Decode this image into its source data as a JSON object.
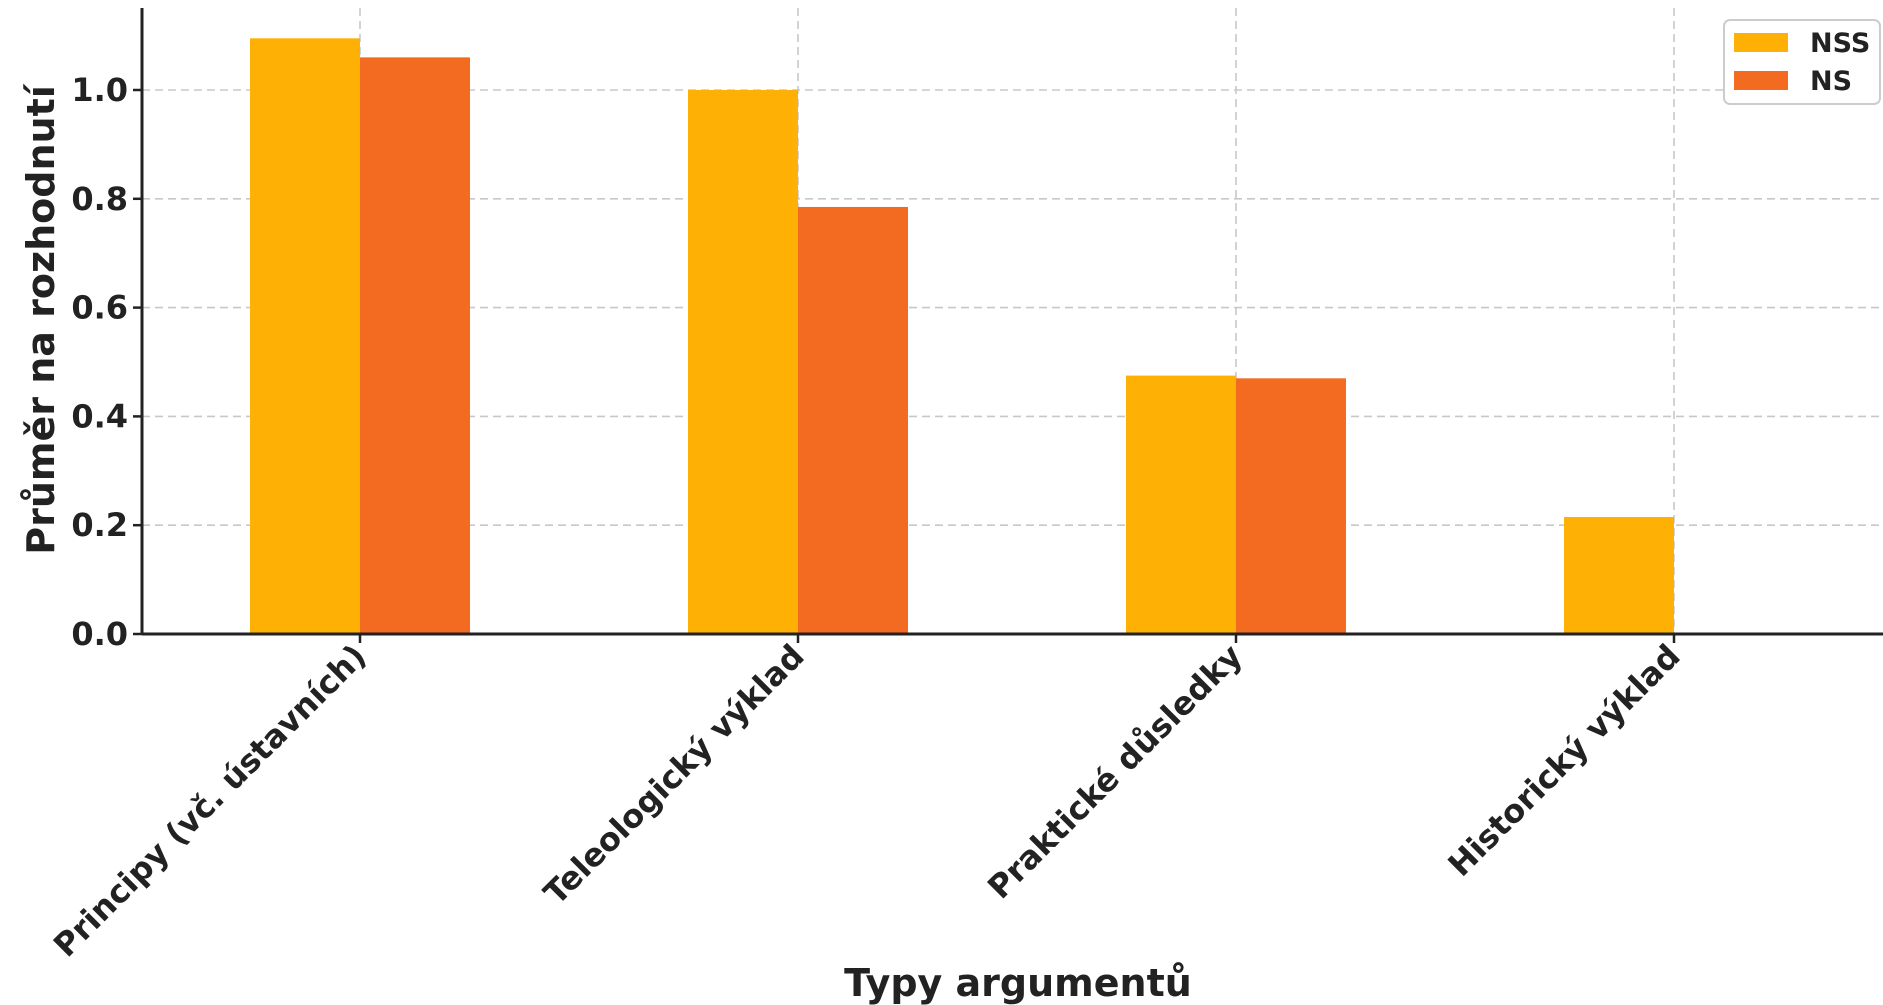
{
  "chart_data": {
    "type": "bar",
    "title": "",
    "xlabel": "Typy argumentů",
    "ylabel": "Průměr na rozhodnutí",
    "categories": [
      "Principy (vč. ústavních)",
      "Teleologický výklad",
      "Praktické důsledky",
      "Historický výklad"
    ],
    "series": [
      {
        "name": "NSS",
        "color": "#FFB005",
        "values": [
          1.095,
          1.0,
          0.475,
          0.215
        ]
      },
      {
        "name": "NS",
        "color": "#F26B21",
        "values": [
          1.06,
          0.785,
          0.47,
          0.0
        ]
      }
    ],
    "ylim": [
      0,
      1.15
    ],
    "yticks": [
      "0.0",
      "0.2",
      "0.4",
      "0.6",
      "0.8",
      "1.0"
    ],
    "grid": true,
    "legend_position": "top-right"
  }
}
